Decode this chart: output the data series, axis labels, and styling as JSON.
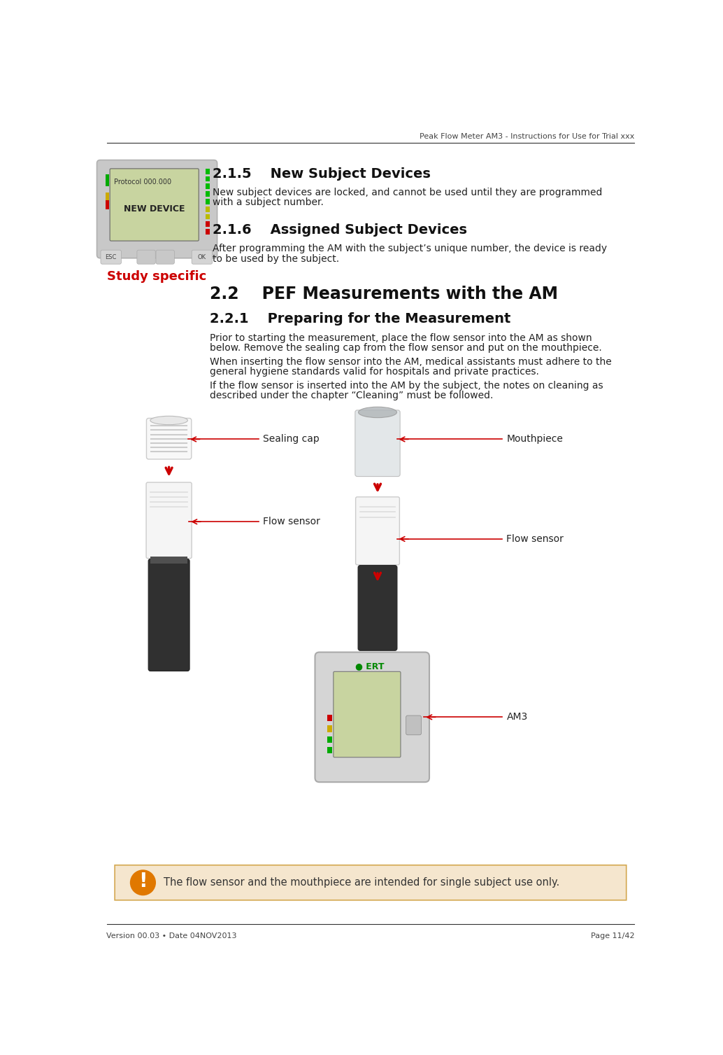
{
  "header_text": "Peak Flow Meter AM3 - Instructions for Use for Trial xxx",
  "footer_left": "Version 00.03 • Date 04NOV2013",
  "footer_right": "Page 11/42",
  "section_215_title": "2.1.5    New Subject Devices",
  "section_215_body1": "New subject devices are locked, and cannot be used until they are programmed",
  "section_215_body2": "with a subject number.",
  "section_216_title": "2.1.6    Assigned Subject Devices",
  "section_216_body1": "After programming the AM with the subject’s unique number, the device is ready",
  "section_216_body2": "to be used by the subject.",
  "section_22_title": "2.2    PEF Measurements with the AM",
  "section_221_title": "2.2.1    Preparing for the Measurement",
  "section_221_body1a": "Prior to starting the measurement, place the flow sensor into the AM as shown",
  "section_221_body1b": "below. Remove the sealing cap from the flow sensor and put on the mouthpiece.",
  "section_221_body2a": "When inserting the flow sensor into the AM, medical assistants must adhere to the",
  "section_221_body2b": "general hygiene standards valid for hospitals and private practices.",
  "section_221_body3a": "If the flow sensor is inserted into the AM by the subject, the notes on cleaning as",
  "section_221_body3b": "described under the chapter “Cleaning” must be followed.",
  "warning_text": "The flow sensor and the mouthpiece are intended for single subject use only.",
  "label_sealing_cap": "Sealing cap",
  "label_flow_sensor_left": "Flow sensor",
  "label_flow_sensor_right": "Flow sensor",
  "label_mouthpiece": "Mouthpiece",
  "label_am3": "AM3",
  "study_specific_text": "Study specific",
  "bg_color": "#ffffff",
  "text_color": "#222222",
  "screen_bg": "#c8d4a0",
  "warning_bg": "#f5e6ce",
  "warning_border": "#d4a850",
  "warning_icon_color": "#e07800",
  "study_specific_color": "#cc0000",
  "arrow_color": "#cc0000",
  "header_line_color": "#333333",
  "device_gray": "#d8d8d8",
  "device_dark": "#282828",
  "device_mid": "#888888",
  "green1": "#00aa00",
  "yellow1": "#ccaa00",
  "red1": "#cc0000"
}
